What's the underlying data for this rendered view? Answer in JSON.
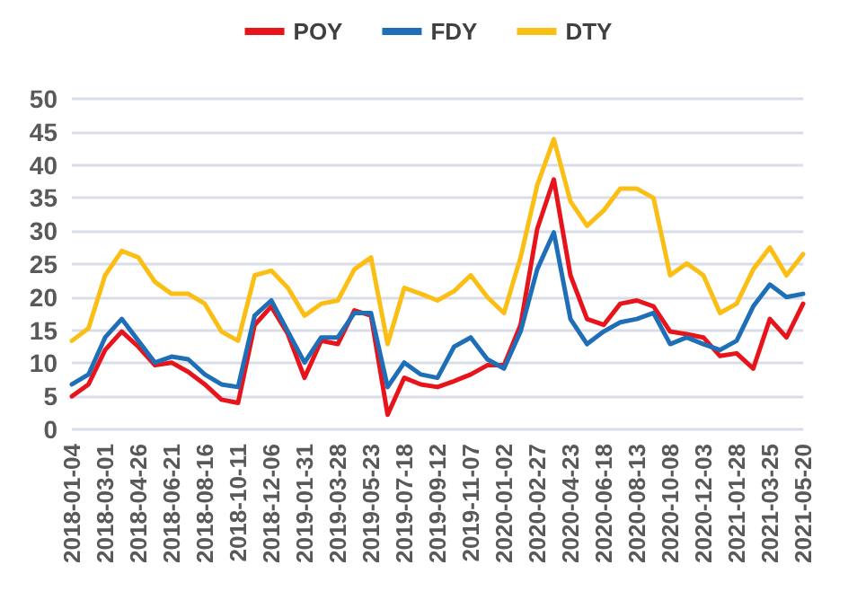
{
  "chart_data": {
    "type": "line",
    "x": [
      "2018-01-04",
      "2018-02-01",
      "2018-03-01",
      "2018-03-29",
      "2018-04-26",
      "2018-05-24",
      "2018-06-21",
      "2018-07-19",
      "2018-08-16",
      "2018-09-13",
      "2018-10-11",
      "2018-11-08",
      "2018-12-06",
      "2019-01-03",
      "2019-01-31",
      "2019-02-28",
      "2019-03-28",
      "2019-04-25",
      "2019-05-23",
      "2019-06-20",
      "2019-07-18",
      "2019-08-15",
      "2019-09-12",
      "2019-10-10",
      "2019-11-07",
      "2019-12-05",
      "2020-01-02",
      "2020-01-30",
      "2020-02-27",
      "2020-03-26",
      "2020-04-23",
      "2020-05-21",
      "2020-06-18",
      "2020-07-16",
      "2020-08-13",
      "2020-09-10",
      "2020-10-08",
      "2020-11-05",
      "2020-12-03",
      "2020-12-31",
      "2021-01-28",
      "2021-02-25",
      "2021-03-25",
      "2021-04-22",
      "2021-05-20"
    ],
    "series": [
      {
        "name": "POY",
        "color": "#e8141b",
        "values": [
          5.0,
          6.8,
          12,
          14.8,
          12.5,
          9.7,
          10.1,
          8.7,
          6.8,
          4.5,
          4,
          15.8,
          18.6,
          14.4,
          7.8,
          13.4,
          12.9,
          18,
          17.2,
          2.2,
          7.8,
          6.8,
          6.4,
          7.3,
          8.3,
          9.7,
          9.7,
          15.8,
          30.3,
          37.8,
          23.3,
          16.7,
          15.8,
          19,
          19.5,
          18.6,
          14.8,
          14.4,
          13.9,
          11.1,
          11.5,
          9.2,
          16.7,
          13.9,
          19
        ]
      },
      {
        "name": "FDY",
        "color": "#1f6fb8",
        "values": [
          6.8,
          8.3,
          13.9,
          16.7,
          13.4,
          10.1,
          11,
          10.6,
          8.3,
          6.8,
          6.4,
          17.2,
          19.5,
          14.8,
          10.1,
          13.9,
          13.9,
          17.6,
          17.6,
          6.4,
          10.1,
          8.3,
          7.8,
          12.5,
          13.9,
          10.6,
          9.2,
          14.8,
          24.2,
          29.8,
          16.7,
          12.9,
          14.8,
          16.2,
          16.7,
          17.6,
          12.9,
          13.9,
          12.9,
          12,
          13.4,
          18.6,
          21.9,
          20,
          20.5
        ]
      },
      {
        "name": "DTY",
        "color": "#fbbe14",
        "values": [
          13.4,
          15.3,
          23.3,
          27,
          26,
          22.3,
          20.5,
          20.5,
          19,
          14.8,
          13.4,
          23.3,
          24,
          21.4,
          17.2,
          19,
          19.5,
          24.2,
          26,
          12.9,
          21.4,
          20.5,
          19.5,
          20.9,
          23.3,
          20,
          17.6,
          26,
          36.9,
          43.9,
          34.5,
          30.8,
          33.1,
          36.4,
          36.4,
          35,
          23.3,
          25.1,
          23.3,
          17.6,
          19,
          24.2,
          27.5,
          23.3,
          26.5
        ]
      }
    ],
    "xlim": [
      "2018-01-04",
      "2021-05-20"
    ],
    "xticks": [
      "2018-01-04",
      "2018-03-01",
      "2018-04-26",
      "2018-06-21",
      "2018-08-16",
      "2018-10-11",
      "2018-12-06",
      "2019-01-31",
      "2019-03-28",
      "2019-05-23",
      "2019-07-18",
      "2019-09-12",
      "2019-11-07",
      "2020-01-02",
      "2020-02-27",
      "2020-04-23",
      "2020-06-18",
      "2020-08-13",
      "2020-10-08",
      "2020-12-03",
      "2021-01-28",
      "2021-03-25",
      "2021-05-20"
    ],
    "ylim": [
      0,
      50
    ],
    "yticks": [
      0,
      5,
      10,
      15,
      20,
      25,
      30,
      35,
      40,
      45,
      50
    ],
    "grid": "y",
    "legend": "top",
    "marker": "none",
    "line_style": "solid"
  }
}
